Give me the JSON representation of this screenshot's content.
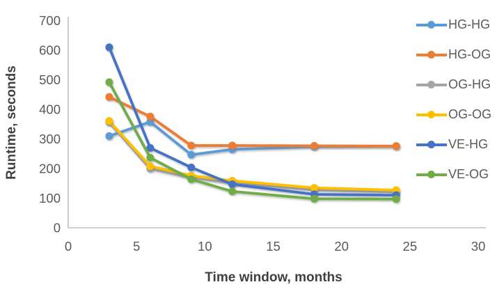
{
  "chart_data": {
    "type": "line",
    "title": "",
    "xlabel": "Time window, months",
    "ylabel": "Runtime, seconds",
    "x": [
      3,
      6,
      9,
      12,
      18,
      24
    ],
    "series": [
      {
        "name": "HG-HG",
        "color": "#5B9BD5",
        "values": [
          310,
          358,
          247,
          265,
          274,
          276
        ]
      },
      {
        "name": "HG-OG",
        "color": "#ED7D31",
        "values": [
          442,
          376,
          278,
          278,
          277,
          276
        ]
      },
      {
        "name": "OG-HG",
        "color": "#A5A5A5",
        "values": [
          357,
          200,
          170,
          152,
          128,
          121
        ]
      },
      {
        "name": "OG-OG",
        "color": "#FFC000",
        "values": [
          361,
          208,
          176,
          159,
          135,
          127
        ]
      },
      {
        "name": "VE-HG",
        "color": "#4472C4",
        "values": [
          610,
          270,
          204,
          147,
          113,
          110
        ]
      },
      {
        "name": "VE-OG",
        "color": "#70AD47",
        "values": [
          492,
          237,
          164,
          123,
          98,
          97
        ]
      }
    ],
    "xlim": [
      0,
      30
    ],
    "ylim": [
      0,
      700
    ],
    "x_ticks": [
      0,
      5,
      10,
      15,
      20,
      25,
      30
    ],
    "y_ticks": [
      0,
      100,
      200,
      300,
      400,
      500,
      600,
      700
    ],
    "grid": false,
    "legend_position": "top-right",
    "axis_color": "#BFBFBF",
    "tick_label_color": "#595959",
    "axis_title_color": "#404040"
  }
}
